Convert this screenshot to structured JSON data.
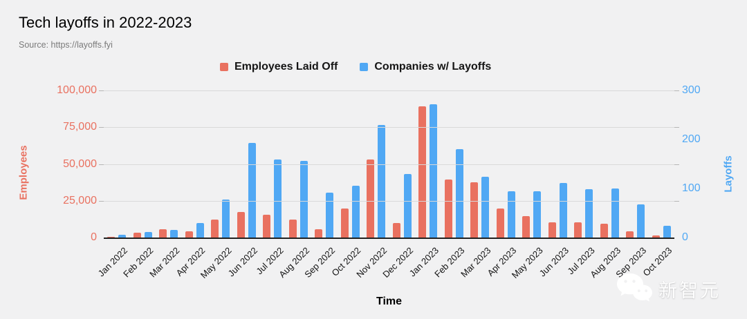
{
  "watermark": {
    "text": "新智元",
    "icon": "wechat-icon"
  },
  "colors": {
    "background": "#f1f1f2",
    "gridline": "#d9d9d9",
    "axis_line": "#212121",
    "employees_series": "#e97160",
    "companies_series": "#50a8f4",
    "source_text": "#7a7a7a"
  },
  "chart_data": {
    "type": "bar",
    "title": "Tech layoffs in 2022-2023",
    "source": "Source: https://layoffs.fyi",
    "xlabel": "Time",
    "legend_position": "top",
    "grid": true,
    "categories": [
      "Jan 2022",
      "Feb 2022",
      "Mar 2022",
      "Apr 2022",
      "May 2022",
      "Jun 2022",
      "Jul 2022",
      "Aug 2022",
      "Sep 2022",
      "Oct 2022",
      "Nov 2022",
      "Dec 2022",
      "Jan 2023",
      "Feb 2023",
      "Mar 2023",
      "Apr 2023",
      "May 2023",
      "Jun 2023",
      "Jul 2023",
      "Aug 2023",
      "Sep 2023",
      "Oct 2023"
    ],
    "series": [
      {
        "name": "Employees Laid Off",
        "axis": "left",
        "color": "#e97160",
        "values": [
          500,
          3300,
          5600,
          4000,
          12400,
          17400,
          15500,
          12300,
          5500,
          19600,
          53000,
          9700,
          89000,
          39500,
          37400,
          19600,
          14700,
          10500,
          10500,
          9200,
          4200,
          1300
        ]
      },
      {
        "name": "Companies w/ Layoffs",
        "axis": "right",
        "color": "#50a8f4",
        "values": [
          5,
          11,
          16,
          29,
          77,
          193,
          159,
          156,
          92,
          105,
          229,
          130,
          272,
          180,
          124,
          95,
          95,
          111,
          98,
          100,
          67,
          24
        ]
      }
    ],
    "left_axis": {
      "label": "Employees",
      "range": [
        0,
        100000
      ],
      "ticks": [
        "100,000",
        "75,000",
        "50,000",
        "25,000",
        "0"
      ]
    },
    "right_axis": {
      "label": "Layoffs",
      "range": [
        0,
        300
      ],
      "ticks": [
        "300",
        "200",
        "100",
        "0"
      ]
    }
  }
}
